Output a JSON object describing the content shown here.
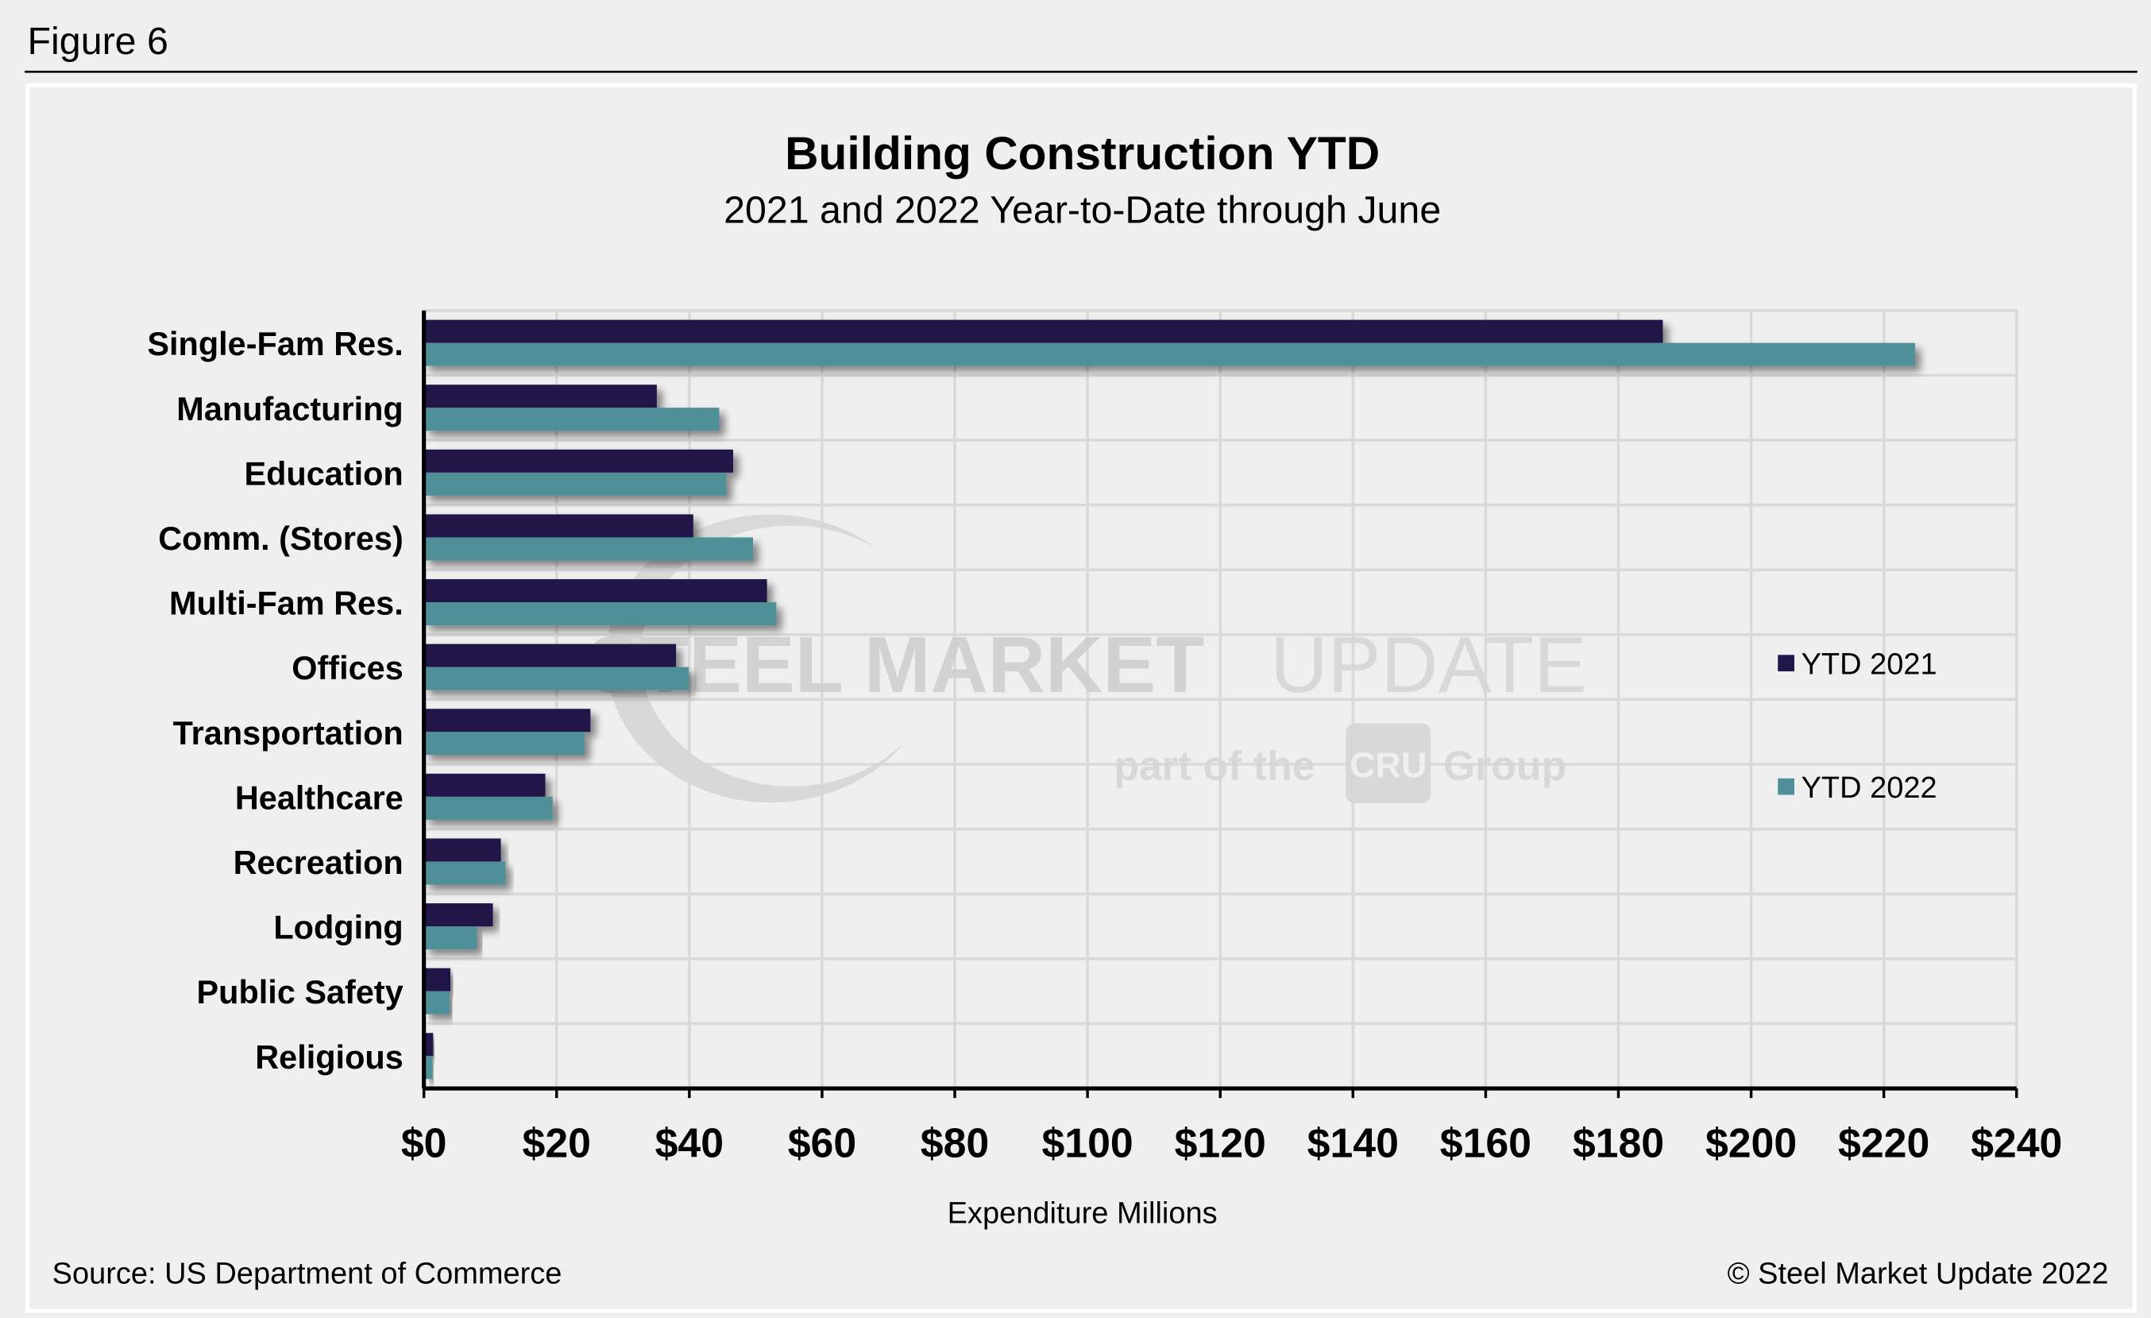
{
  "figure_label": "Figure 6",
  "source": "Source: US Department of Commerce",
  "copyright": "© Steel Market Update 2022",
  "watermark": {
    "line1a": "STEEL MARKET",
    "line1b": "UPDATE",
    "line2a": "part of the",
    "logo": "CRU",
    "line2b": "Group"
  },
  "colors": {
    "ytd2021": "#20174a",
    "ytd2022": "#4f9098",
    "grid": "#d9d9d9",
    "background": "#efefef"
  },
  "chart_data": {
    "type": "bar",
    "orientation": "horizontal",
    "title": "Building Construction YTD",
    "subtitle": "2021 and 2022 Year-to-Date through June",
    "xlabel": "Expenditure Millions",
    "ylabel": "",
    "xlim": [
      0,
      240
    ],
    "xticks": [
      "$0",
      "$20",
      "$40",
      "$60",
      "$80",
      "$100",
      "$120",
      "$140",
      "$160",
      "$180",
      "$200",
      "$220",
      "$240"
    ],
    "grid": true,
    "legend_position": "right",
    "categories": [
      "Single-Fam Res.",
      "Manufacturing",
      "Education",
      "Comm. (Stores)",
      "Multi-Fam Res.",
      "Offices",
      "Transportation",
      "Healthcare",
      "Recreation",
      "Lodging",
      "Public Safety",
      "Religious"
    ],
    "series": [
      {
        "name": "YTD 2021",
        "values": [
          186.7,
          35.1,
          46.6,
          40.6,
          51.7,
          38.0,
          25.1,
          18.3,
          11.6,
          10.4,
          4.0,
          1.4
        ]
      },
      {
        "name": "YTD 2022",
        "values": [
          224.7,
          44.5,
          45.6,
          49.6,
          53.1,
          39.9,
          24.2,
          19.4,
          12.3,
          8.0,
          3.9,
          1.3
        ]
      }
    ]
  }
}
